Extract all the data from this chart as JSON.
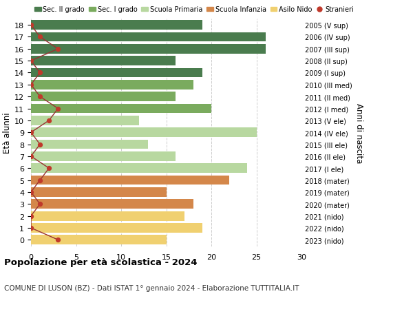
{
  "ages": [
    18,
    17,
    16,
    15,
    14,
    13,
    12,
    11,
    10,
    9,
    8,
    7,
    6,
    5,
    4,
    3,
    2,
    1,
    0
  ],
  "right_labels": [
    "2005 (V sup)",
    "2006 (IV sup)",
    "2007 (III sup)",
    "2008 (II sup)",
    "2009 (I sup)",
    "2010 (III med)",
    "2011 (II med)",
    "2012 (I med)",
    "2013 (V ele)",
    "2014 (IV ele)",
    "2015 (III ele)",
    "2016 (II ele)",
    "2017 (I ele)",
    "2018 (mater)",
    "2019 (mater)",
    "2020 (mater)",
    "2021 (nido)",
    "2022 (nido)",
    "2023 (nido)"
  ],
  "bar_values": [
    19,
    26,
    26,
    16,
    19,
    18,
    16,
    20,
    12,
    25,
    13,
    16,
    24,
    22,
    15,
    18,
    17,
    19,
    15
  ],
  "bar_colors": [
    "#4a7c4e",
    "#4a7c4e",
    "#4a7c4e",
    "#4a7c4e",
    "#4a7c4e",
    "#7aab5e",
    "#7aab5e",
    "#7aab5e",
    "#b8d8a0",
    "#b8d8a0",
    "#b8d8a0",
    "#b8d8a0",
    "#b8d8a0",
    "#d4874a",
    "#d4874a",
    "#d4874a",
    "#f0d070",
    "#f0d070",
    "#f0d070"
  ],
  "stranieri_values": [
    0,
    1,
    3,
    0,
    1,
    0,
    1,
    3,
    2,
    0,
    1,
    0,
    2,
    1,
    0,
    1,
    0,
    0,
    3
  ],
  "legend_labels": [
    "Sec. II grado",
    "Sec. I grado",
    "Scuola Primaria",
    "Scuola Infanzia",
    "Asilo Nido",
    "Stranieri"
  ],
  "legend_colors": [
    "#4a7c4e",
    "#7aab5e",
    "#b8d8a0",
    "#d4874a",
    "#f0d070",
    "#c0392b"
  ],
  "ylabel_left": "Età alunni",
  "ylabel_right": "Anni di nascita",
  "title": "Popolazione per età scolastica - 2024",
  "subtitle": "COMUNE DI LUSON (BZ) - Dati ISTAT 1° gennaio 2024 - Elaborazione TUTTITALIA.IT",
  "xlim": [
    0,
    30
  ],
  "xticks": [
    0,
    5,
    10,
    15,
    20,
    25,
    30
  ],
  "background_color": "#ffffff",
  "grid_color": "#cccccc",
  "stranieri_color": "#c0392b",
  "stranieri_line_color": "#993333"
}
